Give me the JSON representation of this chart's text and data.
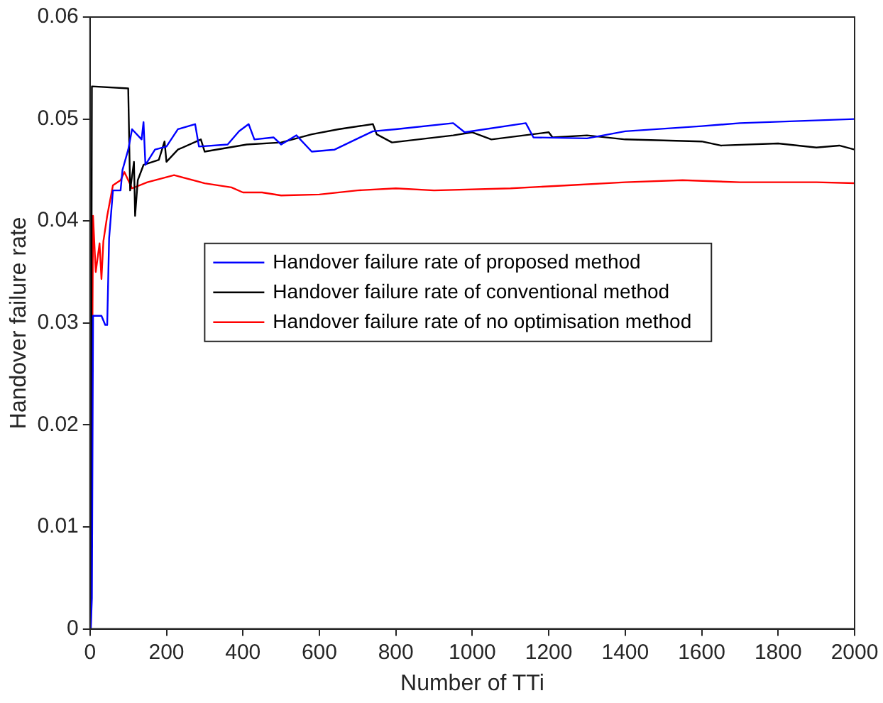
{
  "chart_data": {
    "type": "line",
    "xlabel": "Number of TTi",
    "ylabel": "Handover failure rate",
    "xlim": [
      0,
      2000
    ],
    "ylim": [
      0,
      0.06
    ],
    "xticks": [
      0,
      200,
      400,
      600,
      800,
      1000,
      1200,
      1400,
      1600,
      1800,
      2000
    ],
    "yticks": [
      0,
      0.01,
      0.02,
      0.03,
      0.04,
      0.05,
      0.06
    ],
    "grid": false,
    "legend": "center",
    "marker": "none",
    "line_style": "solid",
    "series": [
      {
        "name": "Handover failure rate of proposed method",
        "color": "#0000ff",
        "x": [
          2,
          5,
          8,
          30,
          40,
          45,
          50,
          60,
          80,
          85,
          100,
          110,
          135,
          140,
          145,
          170,
          200,
          230,
          275,
          285,
          360,
          390,
          415,
          430,
          480,
          500,
          540,
          580,
          640,
          740,
          800,
          950,
          980,
          1140,
          1160,
          1300,
          1400,
          1600,
          1700,
          2000
        ],
        "values": [
          0,
          0.003,
          0.0307,
          0.0307,
          0.0298,
          0.0298,
          0.0383,
          0.043,
          0.043,
          0.045,
          0.047,
          0.049,
          0.048,
          0.0497,
          0.0455,
          0.047,
          0.0473,
          0.049,
          0.0495,
          0.0473,
          0.0475,
          0.0488,
          0.0495,
          0.048,
          0.0482,
          0.0475,
          0.0484,
          0.0468,
          0.047,
          0.0488,
          0.049,
          0.0496,
          0.0487,
          0.0496,
          0.0482,
          0.0481,
          0.0488,
          0.0493,
          0.0496,
          0.05
        ]
      },
      {
        "name": "Handover failure rate of conventional method",
        "color": "#000000",
        "x": [
          2,
          5,
          100,
          105,
          115,
          118,
          125,
          140,
          180,
          195,
          200,
          230,
          290,
          300,
          410,
          500,
          580,
          650,
          740,
          750,
          790,
          950,
          1000,
          1050,
          1200,
          1210,
          1300,
          1400,
          1600,
          1650,
          1800,
          1900,
          1960,
          2000
        ],
        "values": [
          0,
          0.0532,
          0.053,
          0.043,
          0.0458,
          0.0405,
          0.044,
          0.0455,
          0.046,
          0.0478,
          0.0458,
          0.047,
          0.048,
          0.0468,
          0.0475,
          0.0477,
          0.0485,
          0.049,
          0.0495,
          0.0485,
          0.0477,
          0.0484,
          0.0487,
          0.048,
          0.0487,
          0.0482,
          0.0484,
          0.048,
          0.0478,
          0.0474,
          0.0476,
          0.0472,
          0.0474,
          0.047
        ]
      },
      {
        "name": "Handover failure rate of no optimisation method",
        "color": "#ff0000",
        "x": [
          2,
          8,
          15,
          25,
          30,
          35,
          45,
          60,
          80,
          90,
          110,
          150,
          220,
          300,
          370,
          400,
          450,
          500,
          600,
          700,
          800,
          900,
          1100,
          1250,
          1400,
          1550,
          1700,
          1900,
          2000
        ],
        "values": [
          0,
          0.0405,
          0.035,
          0.0378,
          0.0343,
          0.038,
          0.0405,
          0.0435,
          0.044,
          0.0448,
          0.0432,
          0.0438,
          0.0445,
          0.0437,
          0.0433,
          0.0428,
          0.0428,
          0.0425,
          0.0426,
          0.043,
          0.0432,
          0.043,
          0.0432,
          0.0435,
          0.0438,
          0.044,
          0.0438,
          0.0438,
          0.0437
        ]
      }
    ]
  }
}
